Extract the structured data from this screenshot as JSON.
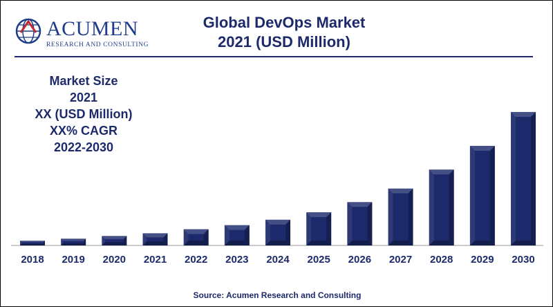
{
  "logo": {
    "name": "ACUMEN",
    "tagline": "RESEARCH AND CONSULTING"
  },
  "title_line1": "Global DevOps Market",
  "title_line2": "2021 (USD Million)",
  "info": {
    "line1": "Market Size",
    "line2": "2021",
    "line3": "XX (USD Million)",
    "line4": "XX% CAGR",
    "line5": "2022-2030"
  },
  "source": "Source: Acumen Research and Consulting",
  "colors": {
    "bar": "#1c2a6b",
    "text": "#1c2a6b",
    "logo": "#1d3d8a"
  },
  "chart_data": {
    "type": "bar",
    "categories": [
      "2018",
      "2019",
      "2020",
      "2021",
      "2022",
      "2023",
      "2024",
      "2025",
      "2026",
      "2027",
      "2028",
      "2029",
      "2030"
    ],
    "values": [
      7,
      10,
      14,
      18,
      24,
      30,
      38,
      49,
      64,
      84,
      112,
      147,
      197
    ],
    "ylim": [
      0,
      200
    ],
    "grid": false,
    "legend": "none"
  }
}
